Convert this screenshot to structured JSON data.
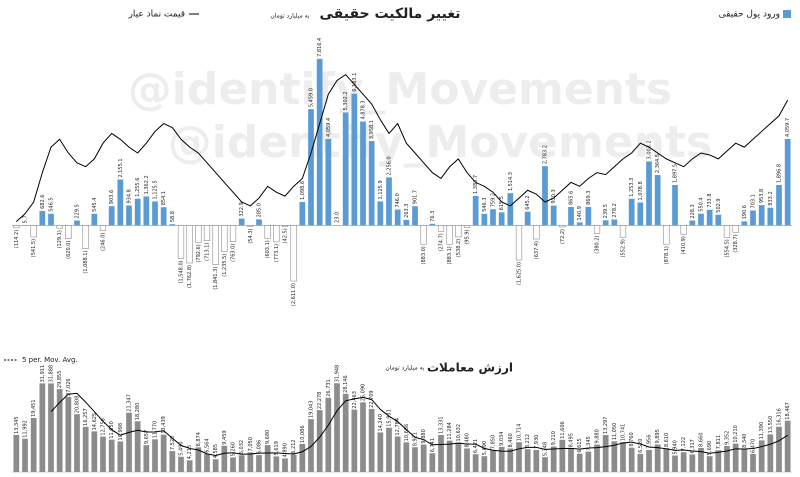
{
  "watermark": "@identify_Movements",
  "chart_data": [
    {
      "type": "bar",
      "title": "تغییر مالکیت حقیقی",
      "subtitle": "به میلیارد تومان",
      "ylim": [
        -3500,
        8000
      ],
      "y2lim": [
        -20,
        105
      ],
      "negative_color": "#ffffff",
      "series": [
        {
          "name": "ورود پول حقیقی",
          "color": "#5b9bd5",
          "values": [
            -114.2,
            5.7,
            -541.5,
            682.6,
            546.5,
            -129.1,
            -620,
            229.5,
            -1088.1,
            545.4,
            -246,
            903.6,
            2155.1,
            934.8,
            1255.6,
            1362.2,
            1125.5,
            854.1,
            58.8,
            -1548,
            -1762.8,
            -792.6,
            -713.1,
            -1841.3,
            -1235.5,
            -763,
            322.9,
            -54.3,
            285,
            -603.1,
            -773.1,
            -42.5,
            -2611,
            1098.6,
            5459,
            7816.4,
            4059.4,
            23,
            5302.2,
            6183.1,
            4878.3,
            3958.1,
            1125.9,
            2256,
            746,
            263.3,
            901.7,
            -883,
            76.3,
            -274.7,
            -883.1,
            -538.2,
            -95.9,
            1383.7,
            546.3,
            759.2,
            615.5,
            1514.3,
            -1625,
            645.2,
            -637.4,
            2783.2,
            930.3,
            -72.2,
            865.6,
            140.9,
            869.3,
            -380.2,
            239.5,
            278.2,
            -552.9,
            1253.3,
            1078.8,
            3003.2,
            2364.5,
            -878.1,
            1897.5,
            -410.9,
            228.3,
            550.4,
            733.8,
            502.9,
            -554.5,
            -328.7,
            190.6,
            703.1,
            953.8,
            833.2,
            1896.8,
            4059.7
          ],
          "value_labels": [
            "(114.2)",
            "5.7",
            "(541.5)",
            "682.6",
            "546.5",
            "(129.1)",
            "(620.0)",
            "229.5",
            "(1,088.1)",
            "545.4",
            "(246.0)",
            "903.6",
            "2,155.1",
            "934.8",
            "1,255.6",
            "1,362.2",
            "1,125.5",
            "854.1",
            "58.8",
            "(1,548.0)",
            "(1,762.8)",
            "(792.6)",
            "(713.1)",
            "(1,841.3)",
            "(1,235.5)",
            "(763.0)",
            "322.9",
            "(54.3)",
            "285.0",
            "(603.1)",
            "(773.1)",
            "(42.5)",
            "(2,611.0)",
            "1,098.6",
            "5,459.0",
            "7,816.4",
            "4,059.4",
            "23.0",
            "5,302.2",
            "6,183.1",
            "4,878.3",
            "3,958.1",
            "1,125.9",
            "2,256.0",
            "746.0",
            "263.3",
            "901.7",
            "(883.0)",
            "76.3",
            "(274.7)",
            "(883.1)",
            "(538.2)",
            "(95.9)",
            "1,383.7",
            "546.3",
            "759.2",
            "615.5",
            "1,514.3",
            "(1,625.0)",
            "645.2",
            "(637.4)",
            "2,783.2",
            "930.3",
            "(72.2)",
            "865.6",
            "140.9",
            "869.3",
            "(380.2)",
            "239.5",
            "278.2",
            "(552.9)",
            "1,253.3",
            "1,078.8",
            "3,003.2",
            "2,364.5",
            "(878.1)",
            "1,897.5",
            "(410.9)",
            "228.3",
            "550.4",
            "733.8",
            "502.9",
            "(554.5)",
            "(328.7)",
            "190.6",
            "703.1",
            "953.8",
            "833.2",
            "1,896.8",
            "4,059.7"
          ]
        },
        {
          "name": "قیمت نماد عیار",
          "type": "line",
          "axis": "y2",
          "color": "#000000",
          "values": [
            20,
            24,
            30,
            45,
            58,
            62,
            55,
            50,
            48,
            52,
            60,
            65,
            62,
            58,
            55,
            60,
            66,
            70,
            68,
            62,
            58,
            55,
            50,
            45,
            40,
            35,
            30,
            28,
            32,
            38,
            35,
            33,
            38,
            42,
            55,
            70,
            85,
            92,
            95,
            90,
            85,
            80,
            72,
            65,
            70,
            60,
            55,
            50,
            45,
            42,
            48,
            52,
            45,
            40,
            38,
            35,
            30,
            28,
            32,
            36,
            34,
            30,
            32,
            36,
            40,
            38,
            42,
            45,
            44,
            48,
            52,
            55,
            60,
            58,
            55,
            52,
            50,
            48,
            52,
            55,
            54,
            52,
            56,
            60,
            58,
            62,
            66,
            70,
            74,
            82
          ]
        }
      ]
    },
    {
      "type": "bar",
      "title": "ارزش معاملات",
      "subtitle": "به میلیارد تومان",
      "ylim": [
        0,
        36000
      ],
      "series": [
        {
          "color": "#8c8c8c",
          "values": [
            13345,
            11992,
            19451,
            31911,
            31888,
            29855,
            27026,
            20808,
            16257,
            14625,
            12756,
            11650,
            10998,
            21347,
            18280,
            9657,
            11770,
            13439,
            7520,
            5490,
            4215,
            8874,
            6564,
            4585,
            9459,
            5260,
            6032,
            7050,
            6086,
            9680,
            5619,
            4890,
            6212,
            10086,
            19043,
            22278,
            26731,
            31948,
            28146,
            22463,
            25090,
            22709,
            14240,
            15931,
            12784,
            10686,
            8921,
            9880,
            6741,
            13331,
            11284,
            10632,
            8480,
            6421,
            5690,
            7850,
            9034,
            8460,
            10714,
            8212,
            7930,
            5348,
            9210,
            11606,
            8495,
            6615,
            7345,
            9880,
            13297,
            11050,
            10741,
            8760,
            6520,
            7956,
            9895,
            8610,
            5940,
            7122,
            6317,
            8660,
            5690,
            7811,
            9352,
            10210,
            8340,
            6470,
            11390,
            13550,
            16316,
            18467
          ],
          "value_labels": [
            "13,345",
            "11,992",
            "19,451",
            "31,911",
            "31,888",
            "29,855",
            "27,026",
            "20,808",
            "16,257",
            "14,625",
            "12,756",
            "11,650",
            "10,998",
            "21,347",
            "18,280",
            "9,657",
            "11,770",
            "13,439",
            "7,520",
            "5,490",
            "4,215",
            "8,874",
            "6,564",
            "4,585",
            "9,459",
            "5,260",
            "6,032",
            "7,050",
            "6,086",
            "9,680",
            "5,619",
            "4,890",
            "6,212",
            "10,086",
            "19,043",
            "22,278",
            "26,731",
            "31,948",
            "28,146",
            "22,463",
            "25,090",
            "22,709",
            "14,240",
            "15,931",
            "12,784",
            "10,686",
            "8,921",
            "9,880",
            "6,741",
            "13,331",
            "11,284",
            "10,632",
            "8,480",
            "6,421",
            "5,690",
            "7,850",
            "9,034",
            "8,460",
            "10,714",
            "8,212",
            "7,930",
            "5,348",
            "9,210",
            "11,606",
            "8,495",
            "6,615",
            "7,345",
            "9,880",
            "13,297",
            "11,050",
            "10,741",
            "8,760",
            "6,520",
            "7,956",
            "9,895",
            "8,610",
            "5,940",
            "7,122",
            "6,317",
            "8,660",
            "5,690",
            "7,811",
            "9,352",
            "10,210",
            "8,340",
            "6,470",
            "11,390",
            "13,550",
            "16,316",
            "18,467"
          ]
        },
        {
          "name": "5 per. Mov. Avg.",
          "type": "line",
          "color": "#000000",
          "values": [
            null,
            null,
            null,
            null,
            21717,
            25019,
            28026,
            28298,
            25167,
            21714,
            18294,
            15219,
            13257,
            14275,
            15006,
            14386,
            14410,
            14899,
            12133,
            9575,
            8487,
            7908,
            6533,
            5946,
            6739,
            6948,
            6380,
            6477,
            6777,
            6822,
            6893,
            6665,
            6497,
            7297,
            9170,
            12502,
            16870,
            22017,
            25629,
            26313,
            26876,
            26071,
            22530,
            20087,
            18151,
            15270,
            12512,
            11640,
            9802,
            9912,
            10031,
            10374,
            10094,
            10030,
            8501,
            7815,
            7495,
            7491,
            8350,
            8854,
            8870,
            8133,
            8283,
            8461,
            8518,
            8255,
            8654,
            8788,
            9126,
            9637,
            10463,
            10746,
            10074,
            9005,
            8774,
            8348,
            7784,
            7905,
            7577,
            7330,
            6746,
            7120,
            7566,
            8345,
            8281,
            8437,
            9152,
            9992,
            11213,
            13239
          ]
        }
      ]
    }
  ]
}
